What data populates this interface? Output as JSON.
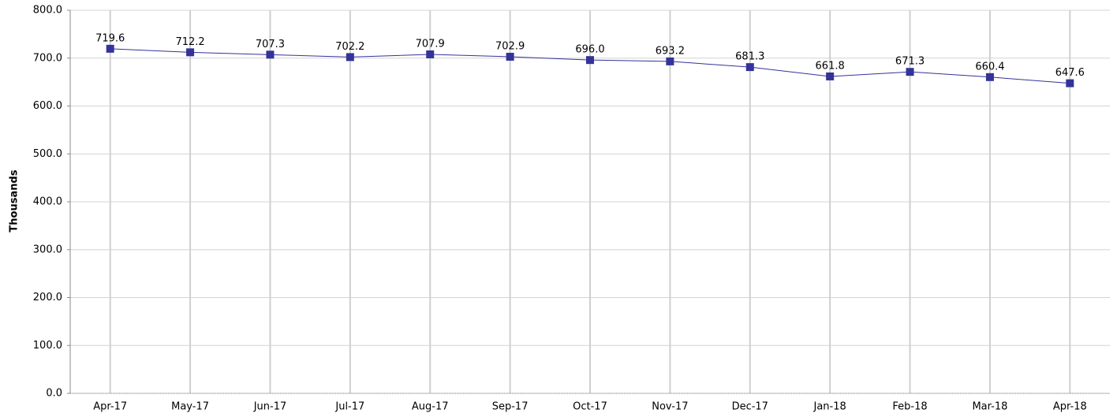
{
  "chart_data": {
    "type": "line",
    "y_label": "Thousands",
    "categories": [
      "Apr-17",
      "May-17",
      "Jun-17",
      "Jul-17",
      "Aug-17",
      "Sep-17",
      "Oct-17",
      "Nov-17",
      "Dec-17",
      "Jan-18",
      "Feb-18",
      "Mar-18",
      "Apr-18"
    ],
    "values": [
      719.6,
      712.2,
      707.3,
      702.2,
      707.9,
      702.9,
      696.0,
      693.2,
      681.3,
      661.8,
      671.3,
      660.4,
      647.6
    ],
    "value_labels": [
      "719.6",
      "712.2",
      "707.3",
      "702.2",
      "707.9",
      "702.9",
      "696.0",
      "693.2",
      "681.3",
      "661.8",
      "671.3",
      "660.4",
      "647.6"
    ],
    "color": "#333399",
    "ylim": [
      0,
      800
    ],
    "yticks": [
      {
        "value": 0,
        "label": "0.0"
      },
      {
        "value": 100,
        "label": "100.0"
      },
      {
        "value": 200,
        "label": "200.0"
      },
      {
        "value": 300,
        "label": "300.0"
      },
      {
        "value": 400,
        "label": "400.0"
      },
      {
        "value": 500,
        "label": "500.0"
      },
      {
        "value": 600,
        "label": "600.0"
      },
      {
        "value": 700,
        "label": "700.0"
      },
      {
        "value": 800,
        "label": "800.0"
      }
    ],
    "grid": true
  }
}
